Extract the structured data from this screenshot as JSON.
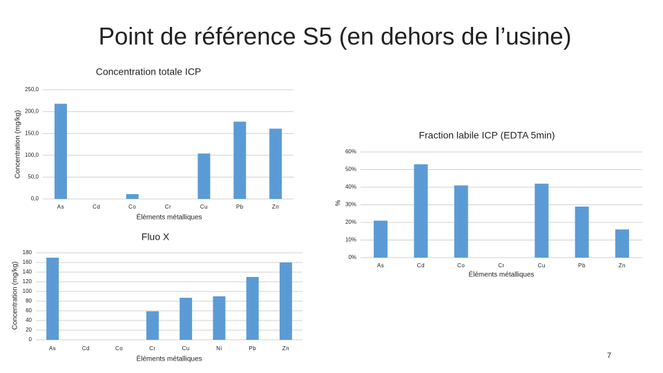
{
  "title": "Point de référence S5 (en dehors de l’usine)",
  "page_number": "7",
  "chart_data": [
    {
      "type": "bar",
      "title": "Concentration totale ICP",
      "x_label": "Éléments métalliques",
      "y_label": "Concentration (mg/kg)",
      "categories": [
        "As",
        "Cd",
        "Co",
        "Cr",
        "Cu",
        "Pb",
        "Zn"
      ],
      "values": [
        218,
        0,
        11,
        0,
        104,
        177,
        161
      ],
      "color": "#5b9bd5",
      "ylim": [
        0,
        250
      ],
      "yticks": [
        {
          "value": 0,
          "label": "0,0"
        },
        {
          "value": 50,
          "label": "50,0"
        },
        {
          "value": 100,
          "label": "100,0"
        },
        {
          "value": 150,
          "label": "150,0"
        },
        {
          "value": 200,
          "label": "200,0"
        },
        {
          "value": 250,
          "label": "250,0"
        }
      ],
      "grid": true
    },
    {
      "type": "bar",
      "title": "Fraction labile ICP (EDTA 5min)",
      "x_label": "Éléments métalliques",
      "y_label": "%",
      "categories": [
        "As",
        "Cd",
        "Co",
        "Cr",
        "Cu",
        "Pb",
        "Zn"
      ],
      "values": [
        21,
        53,
        41,
        0,
        42,
        29,
        16
      ],
      "color": "#5b9bd5",
      "ylim": [
        0,
        60
      ],
      "yticks": [
        {
          "value": 0,
          "label": "0%"
        },
        {
          "value": 10,
          "label": "10%"
        },
        {
          "value": 20,
          "label": "20%"
        },
        {
          "value": 30,
          "label": "30%"
        },
        {
          "value": 40,
          "label": "40%"
        },
        {
          "value": 50,
          "label": "50%"
        },
        {
          "value": 60,
          "label": "60%"
        }
      ],
      "grid": true
    },
    {
      "type": "bar",
      "title": "Fluo X",
      "x_label": "Éléments métalliques",
      "y_label": "Concentration (mg/kg)",
      "categories": [
        "As",
        "Cd",
        "Co",
        "Cr",
        "Cu",
        "Ni",
        "Pb",
        "Zn"
      ],
      "values": [
        170,
        0,
        0,
        59,
        87,
        90,
        130,
        160
      ],
      "color": "#5b9bd5",
      "ylim": [
        0,
        180
      ],
      "yticks": [
        0,
        20,
        40,
        60,
        80,
        100,
        120,
        140,
        160,
        180
      ],
      "grid": true
    }
  ]
}
